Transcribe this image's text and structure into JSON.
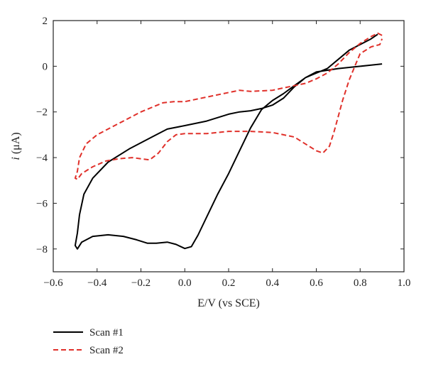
{
  "chart_data": {
    "type": "line",
    "title": "",
    "xlabel": "E/V (vs SCE)",
    "ylabel_prefix": "i",
    "ylabel_unit": "(μA)",
    "xlim": [
      -0.6,
      1.0
    ],
    "ylim": [
      -9,
      2
    ],
    "x_ticks": [
      -0.6,
      -0.4,
      -0.2,
      0.0,
      0.2,
      0.4,
      0.6,
      0.8,
      1.0
    ],
    "x_tick_labels": [
      "−0.6",
      "−0.4",
      "−0.2",
      "0.0",
      "0.2",
      "0.4",
      "0.6",
      "0.8",
      "1.0"
    ],
    "y_ticks": [
      2,
      0,
      -2,
      -4,
      -6,
      -8
    ],
    "y_tick_labels": [
      "2",
      "0",
      "−2",
      "−4",
      "−6",
      "−8"
    ],
    "grid": false,
    "legend_placement": "below plot, left",
    "series": [
      {
        "name": "Scan #1",
        "color": "#000000",
        "style": "solid",
        "points": [
          [
            0.9,
            0.1
          ],
          [
            0.85,
            0.05
          ],
          [
            0.8,
            0.0
          ],
          [
            0.7,
            -0.1
          ],
          [
            0.6,
            -0.25
          ],
          [
            0.55,
            -0.5
          ],
          [
            0.5,
            -0.9
          ],
          [
            0.45,
            -1.4
          ],
          [
            0.4,
            -1.7
          ],
          [
            0.35,
            -1.85
          ],
          [
            0.3,
            -1.95
          ],
          [
            0.25,
            -2.0
          ],
          [
            0.2,
            -2.1
          ],
          [
            0.1,
            -2.4
          ],
          [
            0.0,
            -2.6
          ],
          [
            -0.08,
            -2.75
          ],
          [
            -0.15,
            -3.1
          ],
          [
            -0.25,
            -3.6
          ],
          [
            -0.35,
            -4.2
          ],
          [
            -0.42,
            -4.9
          ],
          [
            -0.46,
            -5.6
          ],
          [
            -0.48,
            -6.5
          ],
          [
            -0.49,
            -7.3
          ],
          [
            -0.5,
            -7.85
          ],
          [
            -0.49,
            -8.0
          ],
          [
            -0.47,
            -7.7
          ],
          [
            -0.42,
            -7.45
          ],
          [
            -0.35,
            -7.38
          ],
          [
            -0.28,
            -7.45
          ],
          [
            -0.22,
            -7.6
          ],
          [
            -0.17,
            -7.75
          ],
          [
            -0.13,
            -7.75
          ],
          [
            -0.08,
            -7.7
          ],
          [
            -0.04,
            -7.8
          ],
          [
            0.0,
            -7.98
          ],
          [
            0.03,
            -7.9
          ],
          [
            0.06,
            -7.4
          ],
          [
            0.1,
            -6.6
          ],
          [
            0.15,
            -5.6
          ],
          [
            0.2,
            -4.7
          ],
          [
            0.25,
            -3.7
          ],
          [
            0.3,
            -2.7
          ],
          [
            0.35,
            -1.9
          ],
          [
            0.4,
            -1.5
          ],
          [
            0.45,
            -1.2
          ],
          [
            0.5,
            -0.85
          ],
          [
            0.55,
            -0.5
          ],
          [
            0.6,
            -0.3
          ],
          [
            0.65,
            -0.1
          ],
          [
            0.7,
            0.3
          ],
          [
            0.75,
            0.7
          ],
          [
            0.8,
            0.95
          ],
          [
            0.85,
            1.2
          ],
          [
            0.88,
            1.4
          ]
        ]
      },
      {
        "name": "Scan #2",
        "color": "#e0302a",
        "style": "dashed",
        "points": [
          [
            0.9,
            1.35
          ],
          [
            0.88,
            1.45
          ],
          [
            0.85,
            1.3
          ],
          [
            0.8,
            1.0
          ],
          [
            0.75,
            0.6
          ],
          [
            0.7,
            0.1
          ],
          [
            0.65,
            -0.3
          ],
          [
            0.6,
            -0.55
          ],
          [
            0.55,
            -0.75
          ],
          [
            0.5,
            -0.85
          ],
          [
            0.45,
            -0.95
          ],
          [
            0.4,
            -1.05
          ],
          [
            0.3,
            -1.1
          ],
          [
            0.25,
            -1.05
          ],
          [
            0.2,
            -1.15
          ],
          [
            0.1,
            -1.35
          ],
          [
            0.0,
            -1.55
          ],
          [
            -0.05,
            -1.55
          ],
          [
            -0.1,
            -1.6
          ],
          [
            -0.2,
            -2.0
          ],
          [
            -0.3,
            -2.5
          ],
          [
            -0.4,
            -3.0
          ],
          [
            -0.45,
            -3.4
          ],
          [
            -0.48,
            -4.0
          ],
          [
            -0.49,
            -4.6
          ],
          [
            -0.5,
            -4.9
          ],
          [
            -0.49,
            -4.95
          ],
          [
            -0.47,
            -4.7
          ],
          [
            -0.42,
            -4.4
          ],
          [
            -0.36,
            -4.15
          ],
          [
            -0.3,
            -4.05
          ],
          [
            -0.24,
            -4.0
          ],
          [
            -0.2,
            -4.05
          ],
          [
            -0.16,
            -4.1
          ],
          [
            -0.12,
            -3.8
          ],
          [
            -0.08,
            -3.3
          ],
          [
            -0.04,
            -3.0
          ],
          [
            0.0,
            -2.95
          ],
          [
            0.1,
            -2.95
          ],
          [
            0.2,
            -2.85
          ],
          [
            0.3,
            -2.85
          ],
          [
            0.4,
            -2.9
          ],
          [
            0.5,
            -3.1
          ],
          [
            0.55,
            -3.4
          ],
          [
            0.6,
            -3.7
          ],
          [
            0.63,
            -3.8
          ],
          [
            0.66,
            -3.5
          ],
          [
            0.68,
            -2.9
          ],
          [
            0.7,
            -2.2
          ],
          [
            0.72,
            -1.5
          ],
          [
            0.75,
            -0.6
          ],
          [
            0.78,
            0.1
          ],
          [
            0.8,
            0.55
          ],
          [
            0.85,
            0.85
          ],
          [
            0.89,
            0.95
          ],
          [
            0.9,
            1.2
          ]
        ]
      }
    ]
  }
}
